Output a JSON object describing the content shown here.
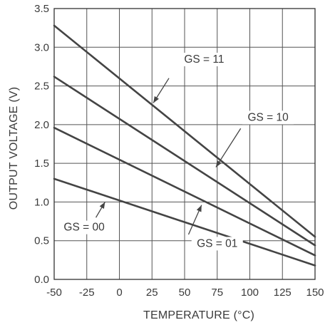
{
  "chart_data": {
    "type": "line",
    "xlabel": "TEMPERATURE (°C)",
    "ylabel": "OUTPUT VOLTAGE (V)",
    "xlim": [
      -50,
      150
    ],
    "ylim": [
      0.0,
      3.5
    ],
    "x_ticks": [
      "-50",
      "-25",
      "0",
      "25",
      "50",
      "75",
      "100",
      "125",
      "150"
    ],
    "y_ticks": [
      "0.0",
      "0.5",
      "1.0",
      "1.5",
      "2.0",
      "2.5",
      "3.0",
      "3.5"
    ],
    "grid": true,
    "colors": {
      "line": "#444444",
      "grid": "#555555",
      "text": "#3a3a3a"
    },
    "series": [
      {
        "name": "GS = 11",
        "x": [
          -50,
          150
        ],
        "y": [
          3.28,
          0.55
        ]
      },
      {
        "name": "GS = 10",
        "x": [
          -50,
          150
        ],
        "y": [
          2.62,
          0.44
        ]
      },
      {
        "name": "GS = 01",
        "x": [
          -50,
          150
        ],
        "y": [
          1.96,
          0.31
        ]
      },
      {
        "name": "GS = 00",
        "x": [
          -50,
          150
        ],
        "y": [
          1.3,
          0.18
        ]
      }
    ],
    "annotations": [
      {
        "text": "GS = 11",
        "label_x": 65,
        "label_y": 2.8,
        "arrow_from": [
          38,
          2.6
        ],
        "arrow_to": [
          26,
          2.28
        ]
      },
      {
        "text": "GS = 10",
        "label_x": 114,
        "label_y": 2.05,
        "arrow_from": [
          93,
          1.95
        ],
        "arrow_to": [
          74,
          1.45
        ]
      },
      {
        "text": "GS = 01",
        "label_x": 75,
        "label_y": 0.42,
        "arrow_from": [
          53,
          0.58
        ],
        "arrow_to": [
          63,
          0.96
        ]
      },
      {
        "text": "GS = 00",
        "label_x": -27,
        "label_y": 0.63,
        "arrow_from": [
          -18,
          0.8
        ],
        "arrow_to": [
          -11,
          1.0
        ]
      }
    ]
  }
}
